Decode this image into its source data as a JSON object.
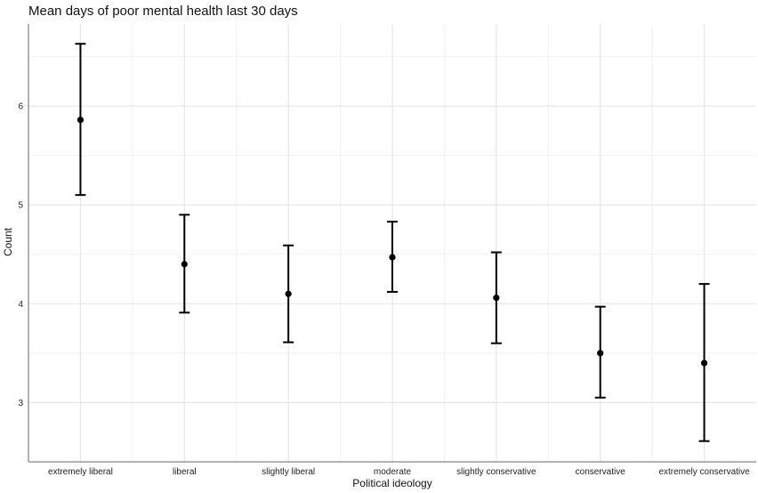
{
  "chart_data": {
    "type": "errorbar",
    "title": "Mean days of poor mental health last 30 days",
    "xlabel": "Political ideology",
    "ylabel": "Count",
    "categories": [
      "extremely liberal",
      "liberal",
      "slightly liberal",
      "moderate",
      "slightly conservative",
      "conservative",
      "extremely conservative"
    ],
    "series": [
      {
        "values": [
          5.86,
          4.4,
          4.1,
          4.47,
          4.06,
          3.5,
          3.4
        ],
        "lower": [
          5.1,
          3.91,
          3.61,
          4.12,
          3.6,
          3.05,
          2.61
        ],
        "upper": [
          6.63,
          4.9,
          4.59,
          4.83,
          4.52,
          3.97,
          4.2
        ]
      }
    ],
    "yticks": [
      3,
      4,
      5,
      6
    ],
    "ylim": [
      2.4,
      6.83
    ],
    "grid": true
  }
}
